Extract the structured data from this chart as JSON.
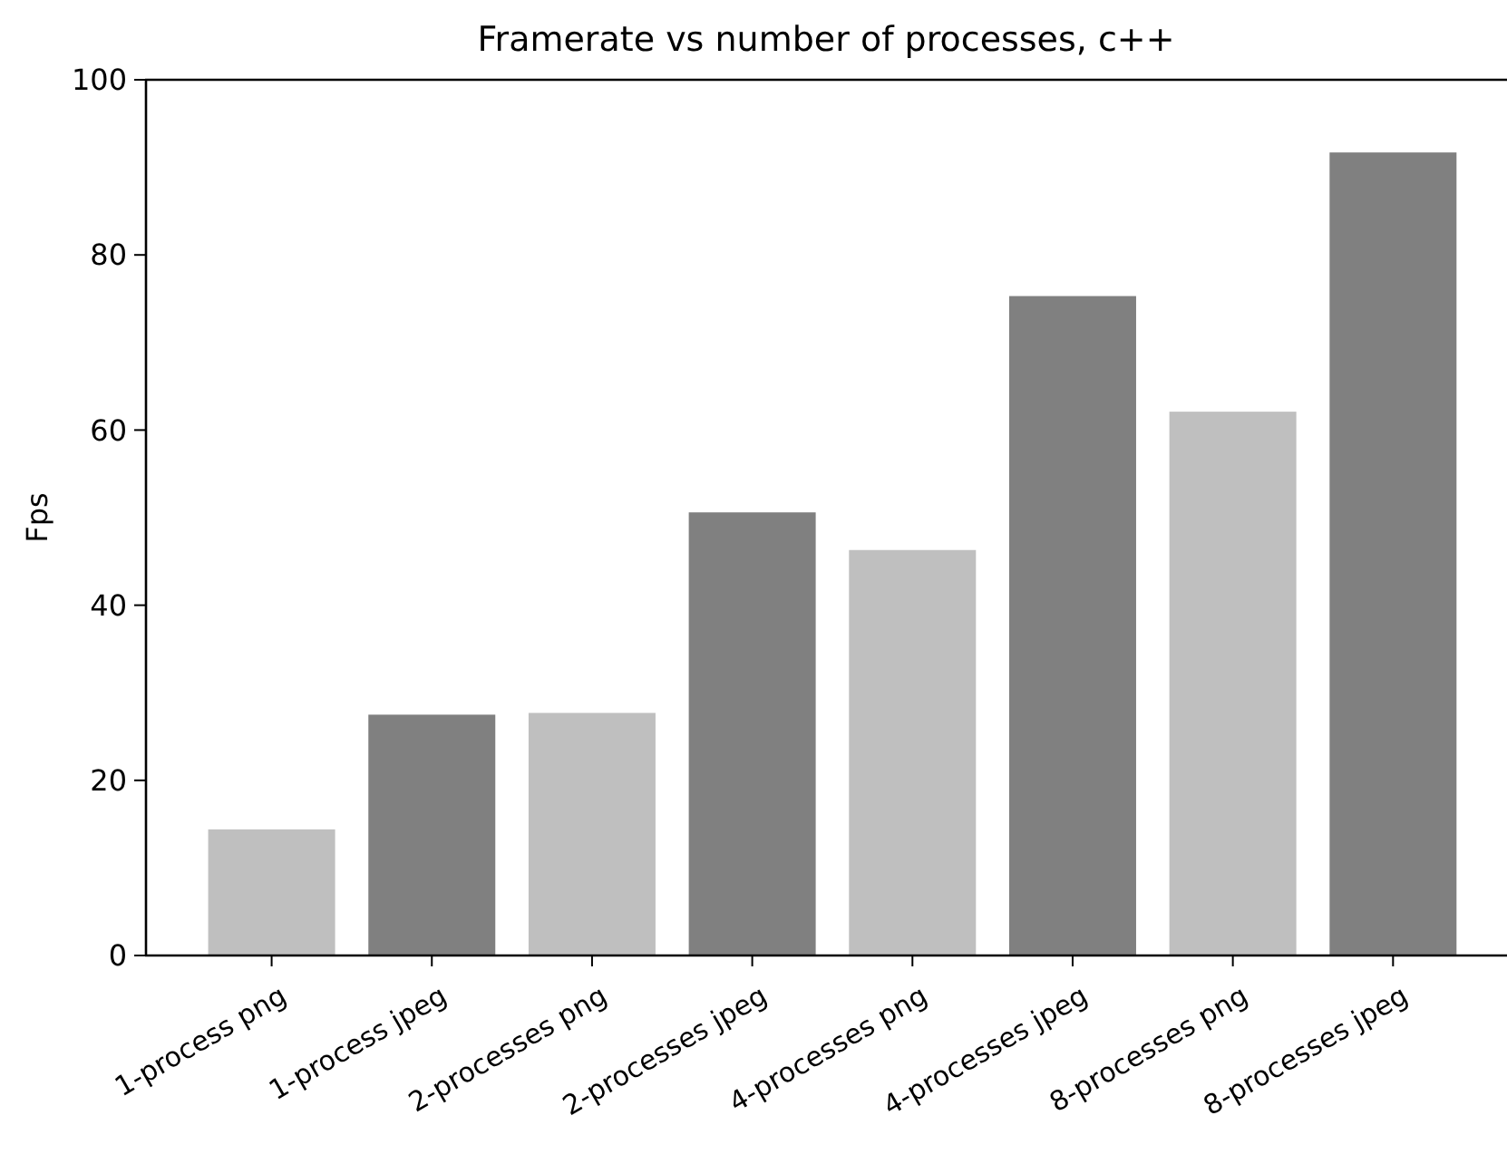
{
  "chart_data": {
    "type": "bar",
    "title": "Framerate vs number of processes, c++",
    "ylabel": "Fps",
    "categories": [
      "1-process png",
      "1-process jpeg",
      "2-processes png",
      "2-processes jpeg",
      "4-processes png",
      "4-processes jpeg",
      "8-processes png",
      "8-processes jpeg"
    ],
    "values": [
      14.4,
      27.5,
      27.7,
      50.6,
      46.3,
      75.3,
      62.1,
      91.7
    ],
    "colors": [
      "#bfbfbf",
      "#808080",
      "#bfbfbf",
      "#808080",
      "#bfbfbf",
      "#808080",
      "#bfbfbf",
      "#808080"
    ],
    "ylim": [
      0,
      100
    ],
    "yticks": [
      0,
      20,
      40,
      60,
      80,
      100
    ],
    "grid": false
  }
}
